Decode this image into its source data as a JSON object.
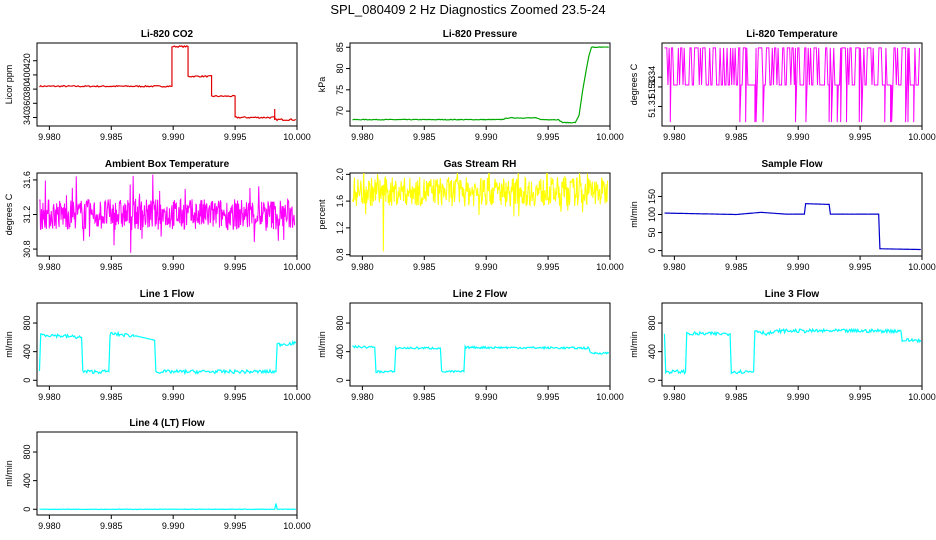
{
  "title": "SPL_080409  2 Hz Diagnostics Zoomed 23.5-24",
  "chart_data": [
    {
      "type": "line",
      "title": "Li-820 CO2",
      "ylabel": "Licor ppm",
      "color": "#e00000",
      "xlim": [
        9.979,
        10.0
      ],
      "ylim": [
        328,
        445
      ],
      "xticks": [
        "9.980",
        "9.985",
        "9.990",
        "9.995",
        "10.000"
      ],
      "yticks": [
        {
          "v": 340,
          "l": "340"
        },
        {
          "v": 360,
          "l": "360"
        },
        {
          "v": 380,
          "l": "380"
        },
        {
          "v": 400,
          "l": "400"
        },
        {
          "v": 420,
          "l": "420"
        }
      ],
      "segments": [
        [
          9.9792,
          9.9898,
          384,
          1
        ],
        [
          9.9898,
          9.9899,
          384,
          0
        ],
        [
          9.9899,
          9.9912,
          440,
          1
        ],
        [
          9.9912,
          9.9931,
          398,
          1
        ],
        [
          9.9931,
          9.995,
          370,
          1
        ],
        [
          9.995,
          9.9982,
          340,
          1.2
        ],
        [
          9.9982,
          9.9999,
          337,
          1.2
        ]
      ],
      "spikes": [
        [
          9.9982,
          337,
          352
        ]
      ]
    },
    {
      "type": "line",
      "title": "Li-820 Pressure",
      "ylabel": "kPa",
      "color": "#00aa00",
      "xlim": [
        9.979,
        10.0
      ],
      "ylim": [
        66.5,
        86
      ],
      "xticks": [
        "9.980",
        "9.985",
        "9.990",
        "9.995",
        "10.000"
      ],
      "yticks": [
        {
          "v": 70,
          "l": "70"
        },
        {
          "v": 75,
          "l": "75"
        },
        {
          "v": 80,
          "l": "80"
        },
        {
          "v": 85,
          "l": "85"
        }
      ],
      "path": [
        [
          9.9792,
          68.0
        ],
        [
          9.9912,
          68.0
        ],
        [
          9.9918,
          68.4
        ],
        [
          9.994,
          68.4
        ],
        [
          9.9945,
          68.0
        ],
        [
          9.9958,
          68.0
        ],
        [
          9.9962,
          67.3
        ],
        [
          9.9972,
          67.3
        ],
        [
          9.9975,
          69.0
        ],
        [
          9.9978,
          75
        ],
        [
          9.9981,
          80
        ],
        [
          9.9983,
          83
        ],
        [
          9.9985,
          85.0
        ],
        [
          9.9999,
          85.0
        ]
      ]
    },
    {
      "type": "line",
      "title": "Li-820 Temperature",
      "ylabel": "degrees C",
      "color": "#ff00ff",
      "xlim": [
        9.979,
        10.0
      ],
      "ylim": [
        51.29,
        51.375
      ],
      "xticks": [
        "9.980",
        "9.985",
        "9.990",
        "9.995",
        "10.000"
      ],
      "yticks": [
        {
          "v": 51.31,
          "l": "51.31"
        },
        {
          "v": 51.33,
          "l": "51.33"
        },
        {
          "v": 51.34,
          "l": "51.34"
        }
      ],
      "binary": [
        51.332,
        51.37
      ]
    },
    {
      "type": "line",
      "title": "Ambient Box Temperature",
      "ylabel": "degrees C",
      "color": "#ff00ff",
      "xlim": [
        9.979,
        10.0
      ],
      "ylim": [
        30.72,
        31.68
      ],
      "xticks": [
        "9.980",
        "9.985",
        "9.990",
        "9.995",
        "10.000"
      ],
      "yticks": [
        {
          "v": 30.8,
          "l": "30.8"
        },
        {
          "v": 31.2,
          "l": "31.2"
        },
        {
          "v": 31.6,
          "l": "31.6"
        }
      ],
      "noise": {
        "base": 31.2,
        "amp": 0.18,
        "spike": 0.3
      }
    },
    {
      "type": "line",
      "title": "Gas Stream RH",
      "ylabel": "percent",
      "color": "#ffff00",
      "xlim": [
        9.979,
        10.0
      ],
      "ylim": [
        0.78,
        2.02
      ],
      "xticks": [
        "9.980",
        "9.985",
        "9.990",
        "9.995",
        "10.000"
      ],
      "yticks": [
        {
          "v": 0.8,
          "l": "0.8"
        },
        {
          "v": 1.2,
          "l": "1.2"
        },
        {
          "v": 1.6,
          "l": "1.6"
        },
        {
          "v": 2.0,
          "l": "2.0"
        }
      ],
      "noise": {
        "base": 1.74,
        "amp": 0.22,
        "spike": 0.18,
        "dip": [
          9.9817,
          0.85
        ]
      }
    },
    {
      "type": "line",
      "title": "Sample Flow",
      "ylabel": "ml/min",
      "color": "#0000cc",
      "xlim": [
        9.979,
        10.0
      ],
      "ylim": [
        -15,
        215
      ],
      "xticks": [
        "9.980",
        "9.985",
        "9.990",
        "9.995",
        "10.000"
      ],
      "yticks": [
        {
          "v": 0,
          "l": "0"
        },
        {
          "v": 50,
          "l": "50"
        },
        {
          "v": 100,
          "l": "100"
        },
        {
          "v": 150,
          "l": "150"
        }
      ],
      "path": [
        [
          9.9792,
          104
        ],
        [
          9.985,
          100
        ],
        [
          9.987,
          106
        ],
        [
          9.989,
          101
        ],
        [
          9.9905,
          101
        ],
        [
          9.9906,
          130
        ],
        [
          9.9925,
          128
        ],
        [
          9.9926,
          101
        ],
        [
          9.9965,
          101
        ],
        [
          9.9966,
          5
        ],
        [
          9.9999,
          3
        ]
      ]
    },
    {
      "type": "line",
      "title": "Line 1 Flow",
      "ylabel": "ml/min",
      "color": "#00ffff",
      "xlim": [
        9.979,
        10.0
      ],
      "ylim": [
        -80,
        1080
      ],
      "xticks": [
        "9.980",
        "9.985",
        "9.990",
        "9.995",
        "10.000"
      ],
      "yticks": [
        {
          "v": 0,
          "l": "0"
        },
        {
          "v": 400,
          "l": "400"
        },
        {
          "v": 800,
          "l": "800"
        }
      ],
      "path": [
        [
          9.9792,
          130
        ],
        [
          9.9793,
          640
        ],
        [
          9.9826,
          600
        ],
        [
          9.9827,
          120
        ],
        [
          9.9848,
          120
        ],
        [
          9.9849,
          650
        ],
        [
          9.987,
          620
        ],
        [
          9.9885,
          560
        ],
        [
          9.9886,
          120
        ],
        [
          9.9983,
          120
        ],
        [
          9.9984,
          500
        ],
        [
          9.9999,
          520
        ]
      ],
      "noiseAmp": 25
    },
    {
      "type": "line",
      "title": "Line 2 Flow",
      "ylabel": "ml/min",
      "color": "#00ffff",
      "xlim": [
        9.979,
        10.0
      ],
      "ylim": [
        -80,
        1080
      ],
      "xticks": [
        "9.980",
        "9.985",
        "9.990",
        "9.995",
        "10.000"
      ],
      "yticks": [
        {
          "v": 0,
          "l": "0"
        },
        {
          "v": 400,
          "l": "400"
        },
        {
          "v": 800,
          "l": "800"
        }
      ],
      "path": [
        [
          9.9792,
          470
        ],
        [
          9.981,
          460
        ],
        [
          9.9811,
          120
        ],
        [
          9.9826,
          120
        ],
        [
          9.9827,
          450
        ],
        [
          9.9863,
          450
        ],
        [
          9.9864,
          120
        ],
        [
          9.9882,
          120
        ],
        [
          9.9883,
          460
        ],
        [
          9.9983,
          450
        ],
        [
          9.9984,
          380
        ],
        [
          9.9999,
          380
        ]
      ],
      "noiseAmp": 15
    },
    {
      "type": "line",
      "title": "Line 3 Flow",
      "ylabel": "ml/min",
      "color": "#00ffff",
      "xlim": [
        9.979,
        10.0
      ],
      "ylim": [
        -80,
        1080
      ],
      "xticks": [
        "9.980",
        "9.985",
        "9.990",
        "9.995",
        "10.000"
      ],
      "yticks": [
        {
          "v": 0,
          "l": "0"
        },
        {
          "v": 400,
          "l": "400"
        },
        {
          "v": 800,
          "l": "800"
        }
      ],
      "path": [
        [
          9.9792,
          650
        ],
        [
          9.9793,
          120
        ],
        [
          9.9809,
          120
        ],
        [
          9.981,
          650
        ],
        [
          9.9845,
          650
        ],
        [
          9.9846,
          120
        ],
        [
          9.9864,
          120
        ],
        [
          9.9865,
          700
        ],
        [
          9.9875,
          650
        ],
        [
          9.9885,
          690
        ],
        [
          9.9983,
          690
        ],
        [
          9.9984,
          560
        ],
        [
          9.9999,
          560
        ]
      ],
      "noiseAmp": 25
    },
    {
      "type": "line",
      "title": "Line 4 (LT) Flow",
      "ylabel": "ml/min",
      "color": "#00ffff",
      "xlim": [
        9.979,
        10.0
      ],
      "ylim": [
        -80,
        1080
      ],
      "xticks": [
        "9.980",
        "9.985",
        "9.990",
        "9.995",
        "10.000"
      ],
      "yticks": [
        {
          "v": 0,
          "l": "0"
        },
        {
          "v": 400,
          "l": "400"
        },
        {
          "v": 800,
          "l": "800"
        }
      ],
      "path": [
        [
          9.9792,
          0
        ],
        [
          9.9982,
          0
        ],
        [
          9.9983,
          80
        ],
        [
          9.9984,
          0
        ],
        [
          9.9999,
          0
        ]
      ],
      "noiseAmp": 3
    }
  ]
}
